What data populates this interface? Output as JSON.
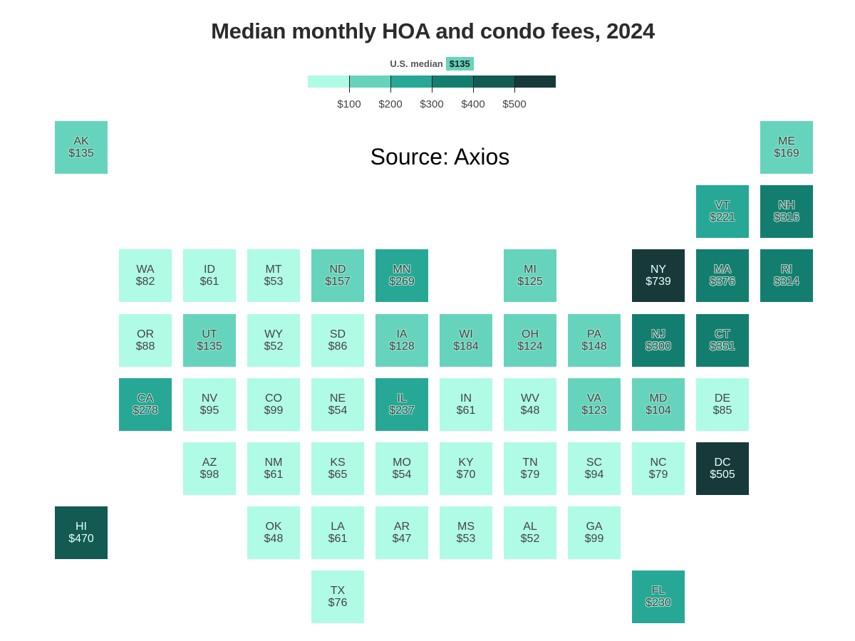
{
  "title": "Median monthly HOA and condo fees, 2024",
  "source": "Source: Axios",
  "legend": {
    "median_label": "U.S. median",
    "median_value": "$135",
    "ticks": [
      "$100",
      "$200",
      "$300",
      "$400",
      "$500"
    ],
    "bins": [
      0,
      100,
      200,
      300,
      400,
      500
    ],
    "colors": [
      "#b0fbe6",
      "#66d4bc",
      "#27a896",
      "#137e70",
      "#125a52",
      "#17393a"
    ]
  },
  "chart_data": {
    "type": "heatmap",
    "title": "Median monthly HOA and condo fees, 2024",
    "states": [
      {
        "code": "AK",
        "value": 135
      },
      {
        "code": "ME",
        "value": 169
      },
      {
        "code": "VT",
        "value": 221
      },
      {
        "code": "NH",
        "value": 316
      },
      {
        "code": "WA",
        "value": 82
      },
      {
        "code": "ID",
        "value": 61
      },
      {
        "code": "MT",
        "value": 53
      },
      {
        "code": "ND",
        "value": 157
      },
      {
        "code": "MN",
        "value": 269
      },
      {
        "code": "MI",
        "value": 125
      },
      {
        "code": "NY",
        "value": 739
      },
      {
        "code": "MA",
        "value": 376
      },
      {
        "code": "RI",
        "value": 314
      },
      {
        "code": "OR",
        "value": 88
      },
      {
        "code": "UT",
        "value": 135
      },
      {
        "code": "WY",
        "value": 52
      },
      {
        "code": "SD",
        "value": 86
      },
      {
        "code": "IA",
        "value": 128
      },
      {
        "code": "WI",
        "value": 184
      },
      {
        "code": "OH",
        "value": 124
      },
      {
        "code": "PA",
        "value": 148
      },
      {
        "code": "NJ",
        "value": 300
      },
      {
        "code": "CT",
        "value": 351
      },
      {
        "code": "CA",
        "value": 278
      },
      {
        "code": "NV",
        "value": 95
      },
      {
        "code": "CO",
        "value": 99
      },
      {
        "code": "NE",
        "value": 54
      },
      {
        "code": "IL",
        "value": 237
      },
      {
        "code": "IN",
        "value": 61
      },
      {
        "code": "WV",
        "value": 48
      },
      {
        "code": "VA",
        "value": 123
      },
      {
        "code": "MD",
        "value": 104
      },
      {
        "code": "DE",
        "value": 85
      },
      {
        "code": "AZ",
        "value": 98
      },
      {
        "code": "NM",
        "value": 61
      },
      {
        "code": "KS",
        "value": 65
      },
      {
        "code": "MO",
        "value": 54
      },
      {
        "code": "KY",
        "value": 70
      },
      {
        "code": "TN",
        "value": 79
      },
      {
        "code": "SC",
        "value": 94
      },
      {
        "code": "NC",
        "value": 79
      },
      {
        "code": "DC",
        "value": 505
      },
      {
        "code": "HI",
        "value": 470
      },
      {
        "code": "OK",
        "value": 48
      },
      {
        "code": "LA",
        "value": 61
      },
      {
        "code": "AR",
        "value": 47
      },
      {
        "code": "MS",
        "value": 53
      },
      {
        "code": "AL",
        "value": 52
      },
      {
        "code": "GA",
        "value": 99
      },
      {
        "code": "TX",
        "value": 76
      },
      {
        "code": "FL",
        "value": 230
      }
    ]
  }
}
